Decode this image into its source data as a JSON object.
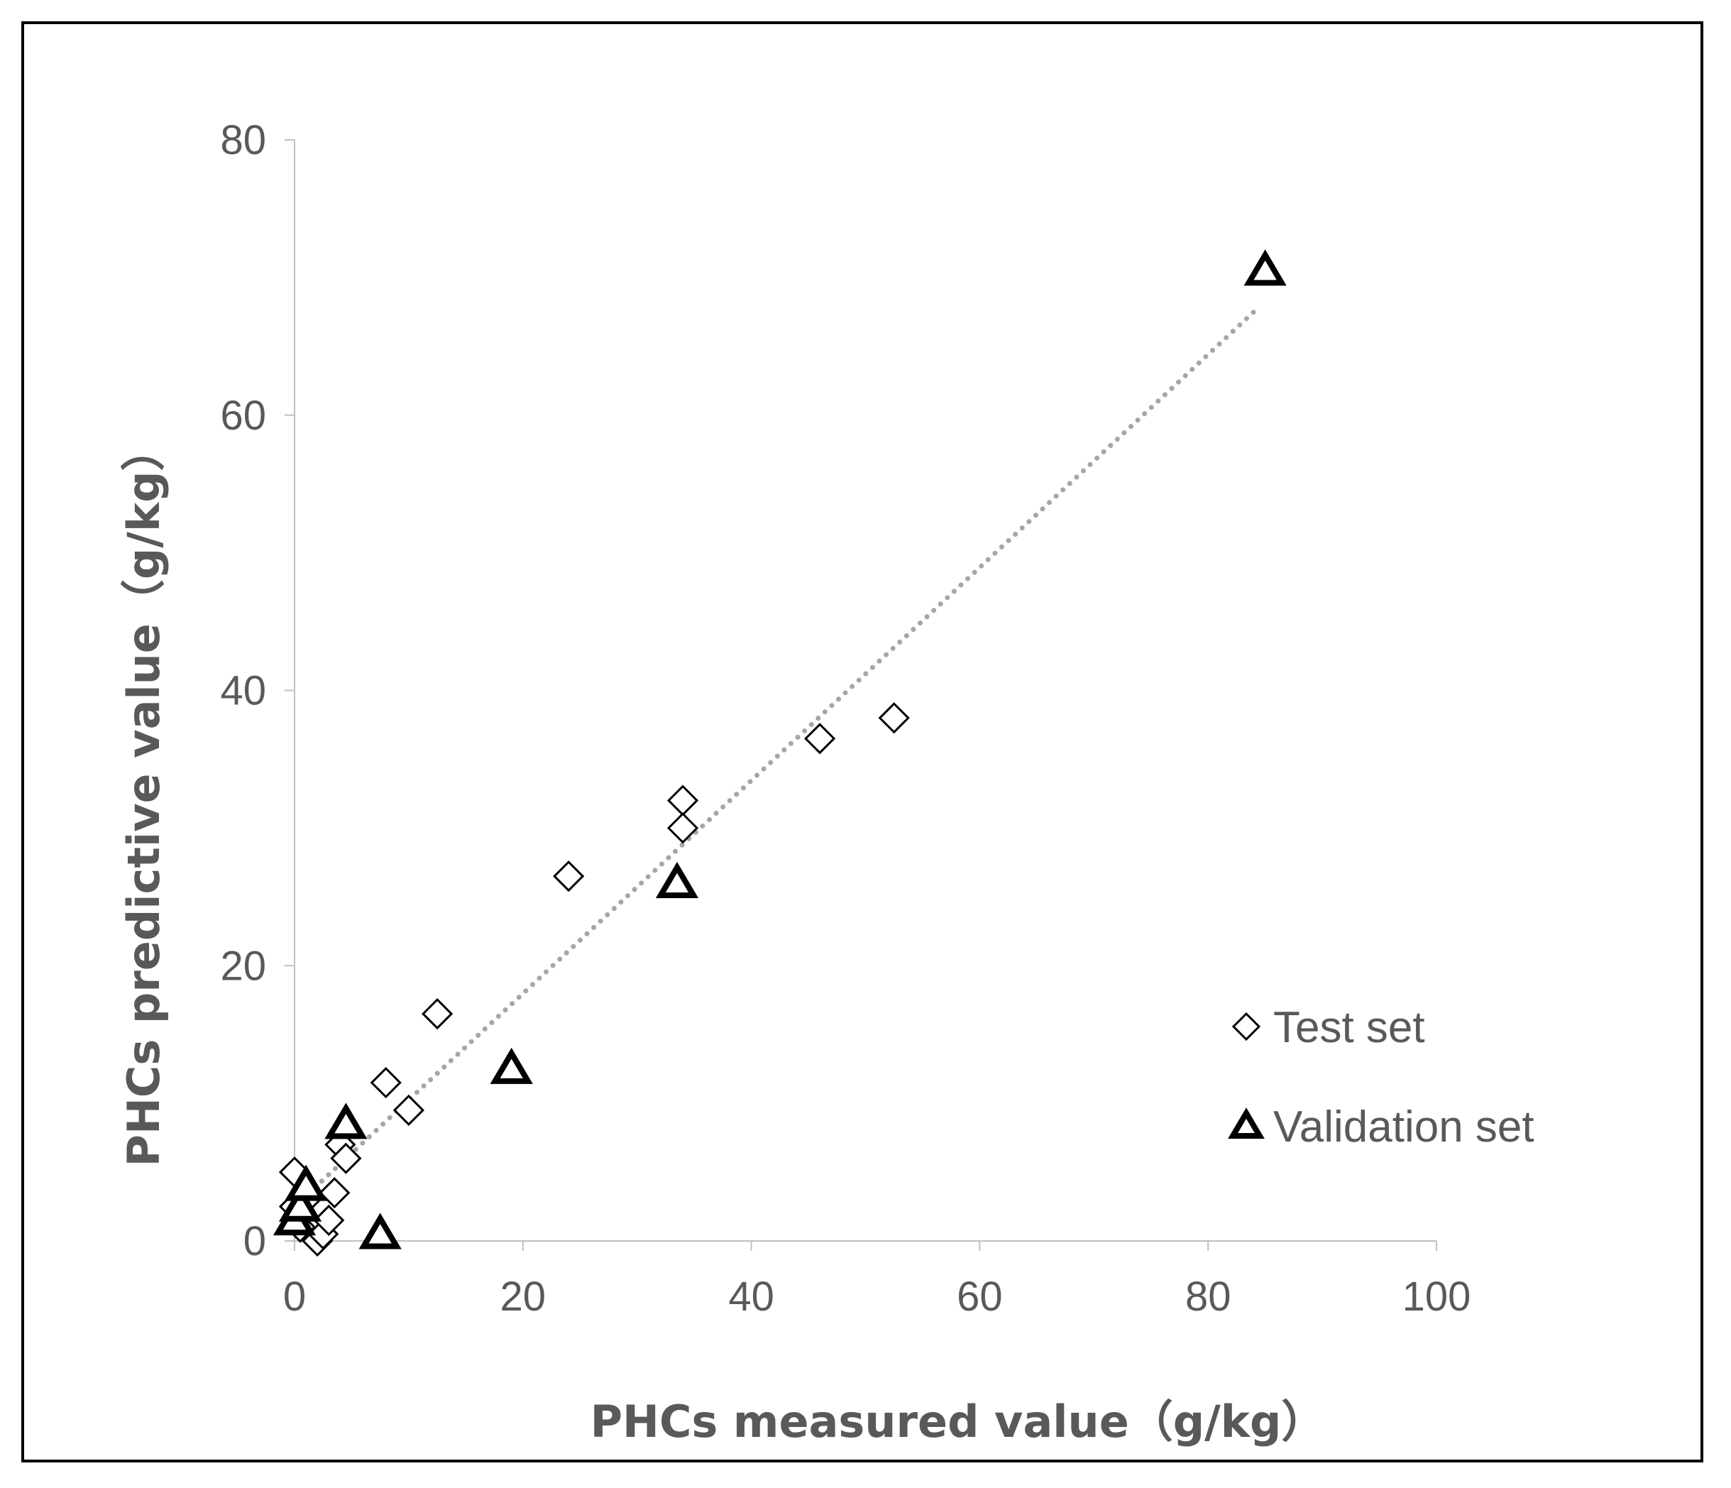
{
  "chart_data": {
    "type": "scatter",
    "title": "",
    "xlabel": "PHCs measured value（g/kg）",
    "ylabel": "PHCs predictive value（g/kg）",
    "xlim": [
      0,
      100
    ],
    "ylim": [
      0,
      80
    ],
    "x_ticks": [
      "0",
      "20",
      "40",
      "60",
      "80",
      "100"
    ],
    "y_ticks": [
      "0",
      "20",
      "40",
      "60",
      "80"
    ],
    "grid": false,
    "legend_position": "bottom-right",
    "trendline": {
      "style": "dotted",
      "color": "#a6a6a6",
      "from": [
        0,
        2.5
      ],
      "to": [
        84,
        67.5
      ]
    },
    "series": [
      {
        "name": "Test set",
        "marker": "diamond",
        "color": "#000000",
        "points": [
          [
            0,
            5
          ],
          [
            0,
            2.5
          ],
          [
            0.5,
            1
          ],
          [
            1,
            3
          ],
          [
            2,
            0
          ],
          [
            2.5,
            0.5
          ],
          [
            3,
            1.5
          ],
          [
            3.5,
            3.5
          ],
          [
            4,
            7
          ],
          [
            4.5,
            6
          ],
          [
            8,
            11.5
          ],
          [
            10,
            9.5
          ],
          [
            12.5,
            16.5
          ],
          [
            24,
            26.5
          ],
          [
            34,
            32
          ],
          [
            34,
            30
          ],
          [
            46,
            36.5
          ],
          [
            52.5,
            38
          ]
        ]
      },
      {
        "name": "Validation set",
        "marker": "triangle",
        "color": "#000000",
        "points": [
          [
            0,
            1.5
          ],
          [
            0.5,
            2.5
          ],
          [
            1,
            4
          ],
          [
            4.5,
            8.5
          ],
          [
            7.5,
            0.5
          ],
          [
            19,
            12.5
          ],
          [
            33.5,
            26
          ],
          [
            85,
            70.5
          ]
        ]
      }
    ]
  }
}
